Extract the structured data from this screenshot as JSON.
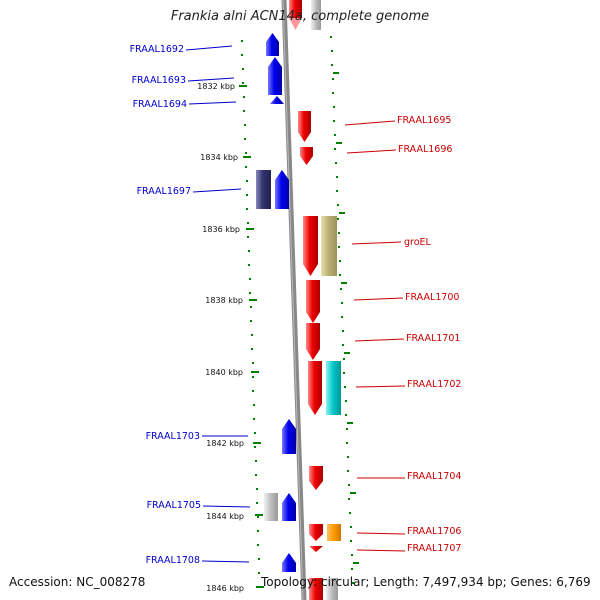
{
  "title": "Frankia alni ACN14a, complete genome",
  "footer": {
    "accession": "Accession: NC_008278",
    "info": "Topology: circular; Length: 7,497,934 bp; Genes: 6,769"
  },
  "colors": {
    "minus_strand_label": "#0000cc",
    "plus_strand_label": "#cc0000",
    "tick": "#008000",
    "backbone": "#888888"
  },
  "scale_ticks": [
    "1832 kbp",
    "1834 kbp",
    "1836 kbp",
    "1838 kbp",
    "1840 kbp",
    "1842 kbp",
    "1844 kbp",
    "1846 kbp"
  ],
  "labels": {
    "left": [
      "FRAAL1692",
      "FRAAL1693",
      "FRAAL1694",
      "FRAAL1697",
      "FRAAL1703",
      "FRAAL1705",
      "FRAAL1708"
    ],
    "right": [
      "FRAAL1695",
      "FRAAL1696",
      "groEL",
      "FRAAL1700",
      "FRAAL1701",
      "FRAAL1702",
      "FRAAL1704",
      "FRAAL1706",
      "FRAAL1707"
    ]
  }
}
